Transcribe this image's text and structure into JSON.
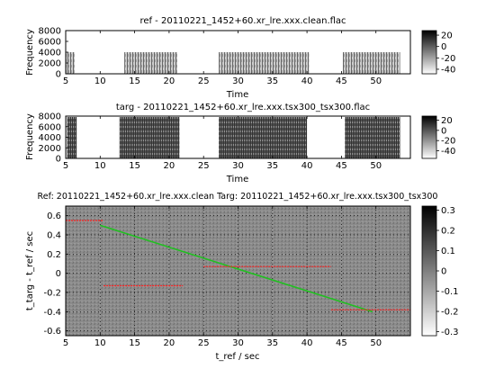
{
  "chart_data": [
    {
      "type": "heatmap",
      "title": "ref - 20110221_1452+60.xr_lre.xxx.clean.flac",
      "xlabel": "Time",
      "ylabel": "Frequency",
      "xlim": [
        5,
        55
      ],
      "ylim": [
        0,
        8000
      ],
      "xticks": [
        5,
        10,
        15,
        20,
        25,
        30,
        35,
        40,
        45,
        50
      ],
      "yticks": [
        0,
        2000,
        4000,
        6000,
        8000
      ],
      "colorbar": {
        "ticks": [
          20,
          0,
          -20,
          -40
        ],
        "range": [
          -48,
          28
        ],
        "colormap": "gray_reversed"
      },
      "active_segments": [
        [
          5,
          6.3
        ],
        [
          13.5,
          21.2
        ],
        [
          27.2,
          40.3
        ],
        [
          45.2,
          53.5
        ]
      ]
    },
    {
      "type": "heatmap",
      "title": "targ - 20110221_1452+60.xr_lre.xxx.tsx300_tsx300.flac",
      "xlabel": "Time",
      "ylabel": "Frequency",
      "xlim": [
        5,
        55
      ],
      "ylim": [
        0,
        8000
      ],
      "xticks": [
        5,
        10,
        15,
        20,
        25,
        30,
        35,
        40,
        45,
        50
      ],
      "yticks": [
        0,
        2000,
        4000,
        6000,
        8000
      ],
      "colorbar": {
        "ticks": [
          20,
          0,
          -20,
          -40
        ],
        "range": [
          -55,
          28
        ],
        "colormap": "gray_reversed"
      },
      "active_segments": [
        [
          5.2,
          6.6
        ],
        [
          12.8,
          21.5
        ],
        [
          27.2,
          40.0
        ],
        [
          45.5,
          53.5
        ]
      ]
    },
    {
      "type": "heatmap",
      "title": "Ref: 20110221_1452+60.xr_lre.xxx.clean Targ: 20110221_1452+60.xr_lre.xxx.tsx300_tsx300",
      "xlabel": "t_ref / sec",
      "ylabel": "t_targ - t_ref / sec",
      "xlim": [
        5,
        55
      ],
      "ylim": [
        -0.65,
        0.7
      ],
      "xticks": [
        5,
        10,
        15,
        20,
        25,
        30,
        35,
        40,
        45,
        50
      ],
      "yticks": [
        0.6,
        0.4,
        0.2,
        0,
        -0.2,
        -0.4,
        -0.6
      ],
      "grid": true,
      "colorbar": {
        "ticks": [
          0.3,
          0.2,
          0.1,
          0,
          -0.1,
          -0.2,
          -0.3
        ],
        "range": [
          -0.32,
          0.32
        ],
        "colormap": "gray_reversed"
      },
      "series": [
        {
          "color": "#20c020",
          "x": [
            10,
            49.5
          ],
          "y": [
            0.5,
            -0.4
          ]
        },
        {
          "color": "#ff2020",
          "segments": [
            {
              "x": [
                5,
                10.5
              ],
              "y": 0.55
            },
            {
              "x": [
                10.5,
                22
              ],
              "y": -0.13
            },
            {
              "x": [
                25,
                43.5
              ],
              "y": 0.07
            },
            {
              "x": [
                43.5,
                55
              ],
              "y": -0.38
            }
          ]
        }
      ]
    }
  ]
}
